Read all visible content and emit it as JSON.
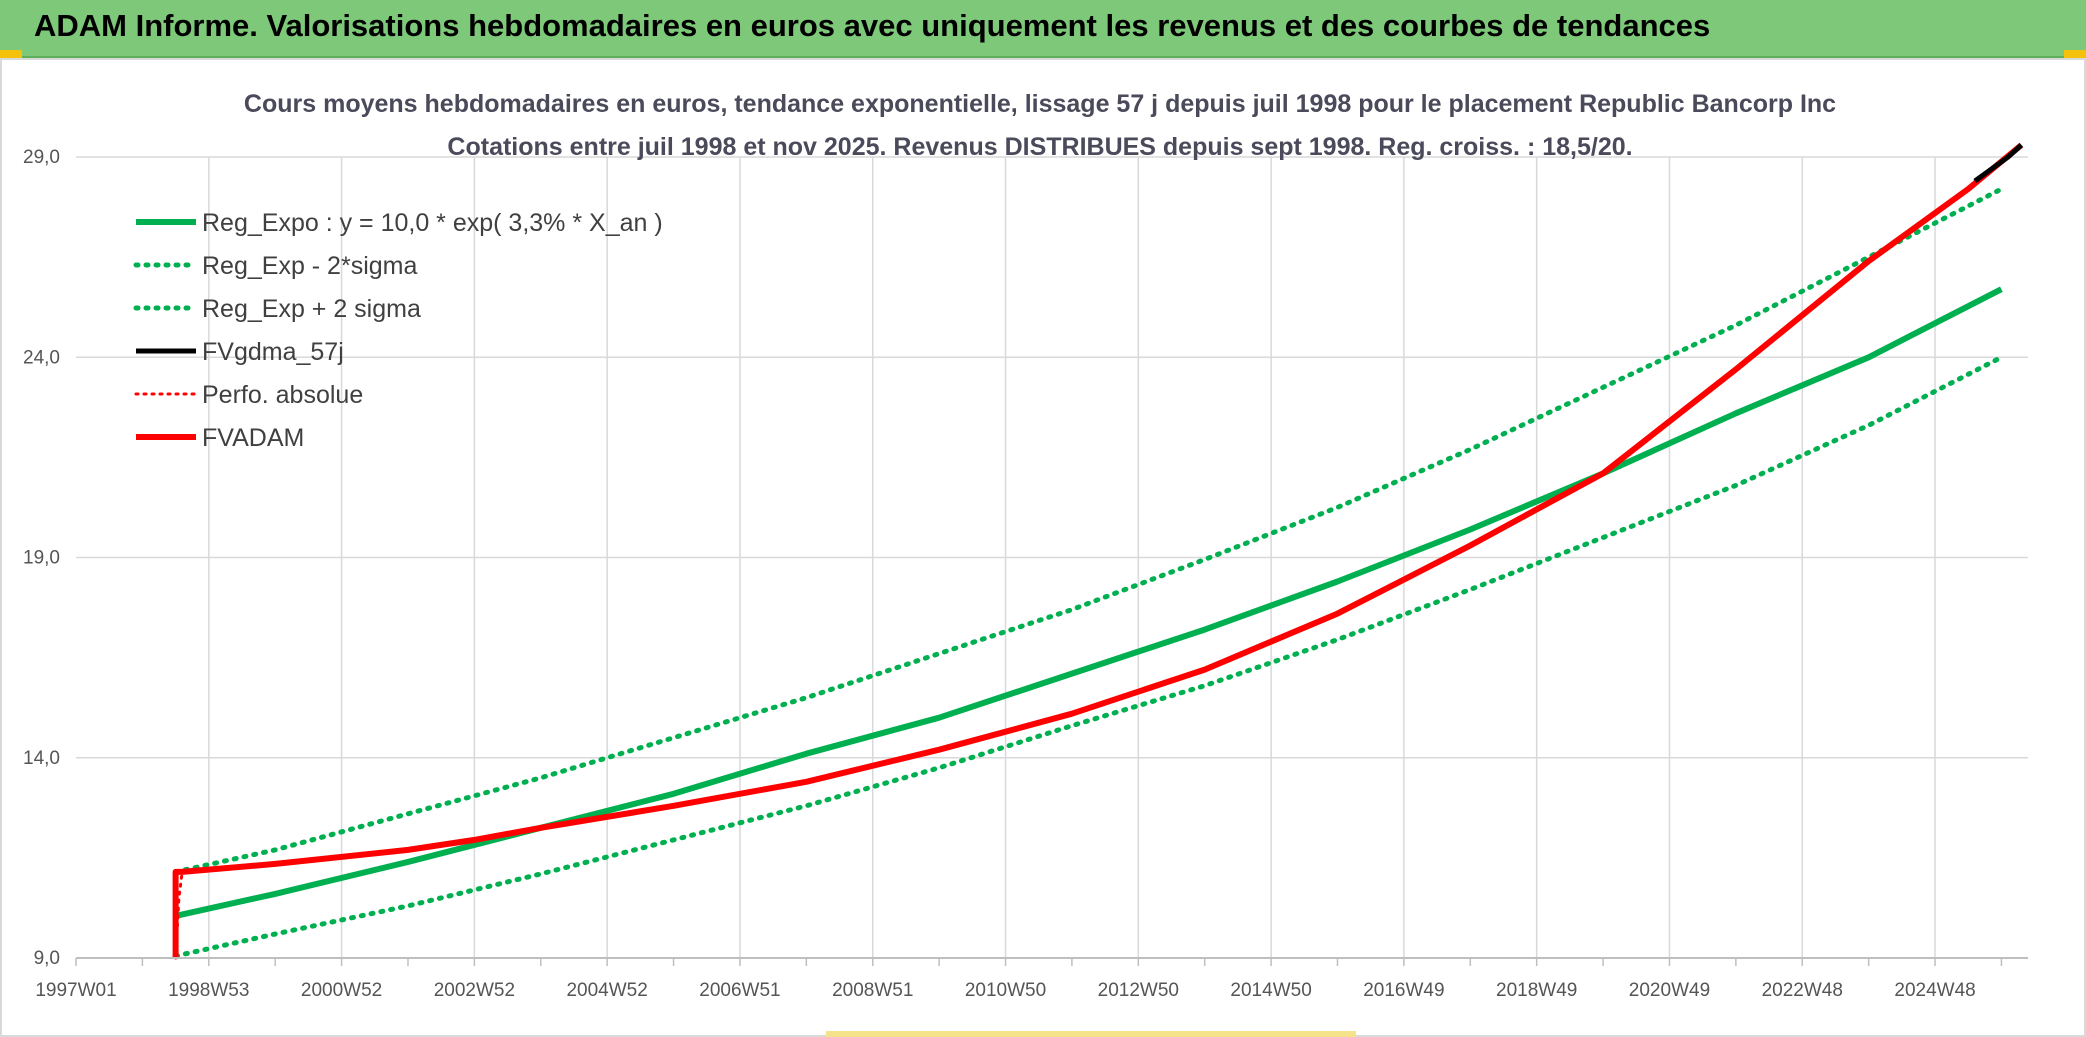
{
  "header": {
    "title": "ADAM Informe. Valorisations hebdomadaires en euros avec uniquement les revenus et des courbes de tendances"
  },
  "colors": {
    "banner": "#7ec87a",
    "reg_expo": "#00b050",
    "fvadam": "#ff0000",
    "fvgdma": "#000000",
    "gridline": "#d9d9d9"
  },
  "chart_data": {
    "type": "line",
    "title_lines": [
      "Cours moyens hebdomadaires en euros, tendance exponentielle, lissage 57 j depuis juil 1998 pour le placement Republic Bancorp Inc",
      "Cotations entre juil 1998 et nov 2025. Revenus DISTRIBUES depuis sept 1998. Reg. croiss. : 18,5/20."
    ],
    "xlabel": "",
    "ylabel": "",
    "x_ticks": [
      "1997W01",
      "1998W53",
      "2000W52",
      "2002W52",
      "2004W52",
      "2006W51",
      "2008W51",
      "2010W50",
      "2012W50",
      "2014W50",
      "2016W49",
      "2018W49",
      "2020W49",
      "2022W48",
      "2024W48"
    ],
    "xlim": [
      1997.0,
      2026.4
    ],
    "y_ticks": [
      "9,0",
      "14,0",
      "19,0",
      "24,0",
      "29,0"
    ],
    "ylim": [
      9.0,
      29.0
    ],
    "grid": true,
    "legend_position": "top-left",
    "legend": [
      "Reg_Expo : y = 10,0 * exp( 3,3% *  X_an )",
      "Reg_Exp - 2*sigma",
      "Reg_Exp + 2 sigma",
      "FVgdma_57j",
      "Perfo. absolue",
      "FVADAM"
    ],
    "series": [
      {
        "name": "Reg_Expo : y = 10,0 * exp( 3,3% *  X_an )",
        "style": "solid-green-thick",
        "x": [
          1998.5,
          2000.0,
          2002.0,
          2004.0,
          2006.0,
          2008.0,
          2010.0,
          2012.0,
          2014.0,
          2016.0,
          2018.0,
          2020.0,
          2022.0,
          2024.0,
          2026.0
        ],
        "y": [
          10.05,
          10.6,
          11.4,
          12.25,
          13.1,
          14.1,
          15.0,
          16.1,
          17.2,
          18.4,
          19.7,
          21.1,
          22.6,
          24.0,
          25.7
        ]
      },
      {
        "name": "Reg_Exp - 2*sigma",
        "style": "dotted-green",
        "x": [
          1998.5,
          2000.0,
          2002.0,
          2004.0,
          2006.0,
          2008.0,
          2010.0,
          2012.0,
          2014.0,
          2016.0,
          2018.0,
          2020.0,
          2022.0,
          2024.0,
          2026.0
        ],
        "y": [
          9.05,
          9.6,
          10.3,
          11.1,
          11.95,
          12.8,
          13.75,
          14.8,
          15.8,
          16.95,
          18.2,
          19.5,
          20.8,
          22.3,
          24.0
        ]
      },
      {
        "name": "Reg_Exp + 2 sigma",
        "style": "dotted-green",
        "x": [
          1998.5,
          2000.0,
          2002.0,
          2004.0,
          2006.0,
          2008.0,
          2010.0,
          2012.0,
          2014.0,
          2016.0,
          2018.0,
          2020.0,
          2022.0,
          2024.0,
          2026.0
        ],
        "y": [
          11.15,
          11.7,
          12.6,
          13.5,
          14.5,
          15.5,
          16.6,
          17.7,
          18.95,
          20.25,
          21.7,
          23.25,
          24.8,
          26.5,
          28.2
        ]
      },
      {
        "name": "FVgdma_57j",
        "style": "solid-black",
        "x": [
          2025.6,
          2025.85,
          2026.1,
          2026.3
        ],
        "y": [
          28.4,
          28.7,
          29.0,
          29.3
        ]
      },
      {
        "name": "Perfo. absolue",
        "style": "dotted-red",
        "x": [
          1998.5,
          1998.55,
          1998.6
        ],
        "y": [
          9.0,
          10.5,
          11.15
        ]
      },
      {
        "name": "FVADAM",
        "style": "solid-red-thick",
        "x": [
          1998.5,
          1998.5,
          1998.6,
          2000.0,
          2002.0,
          2003.0,
          2004.0,
          2006.0,
          2008.0,
          2010.0,
          2012.0,
          2014.0,
          2016.0,
          2018.0,
          2019.0,
          2020.0,
          2022.0,
          2024.0,
          2025.5,
          2026.3
        ],
        "y": [
          9.0,
          11.15,
          11.15,
          11.35,
          11.7,
          11.95,
          12.25,
          12.8,
          13.4,
          14.2,
          15.1,
          16.2,
          17.6,
          19.3,
          20.2,
          21.1,
          23.7,
          26.4,
          28.2,
          29.3
        ]
      }
    ]
  }
}
